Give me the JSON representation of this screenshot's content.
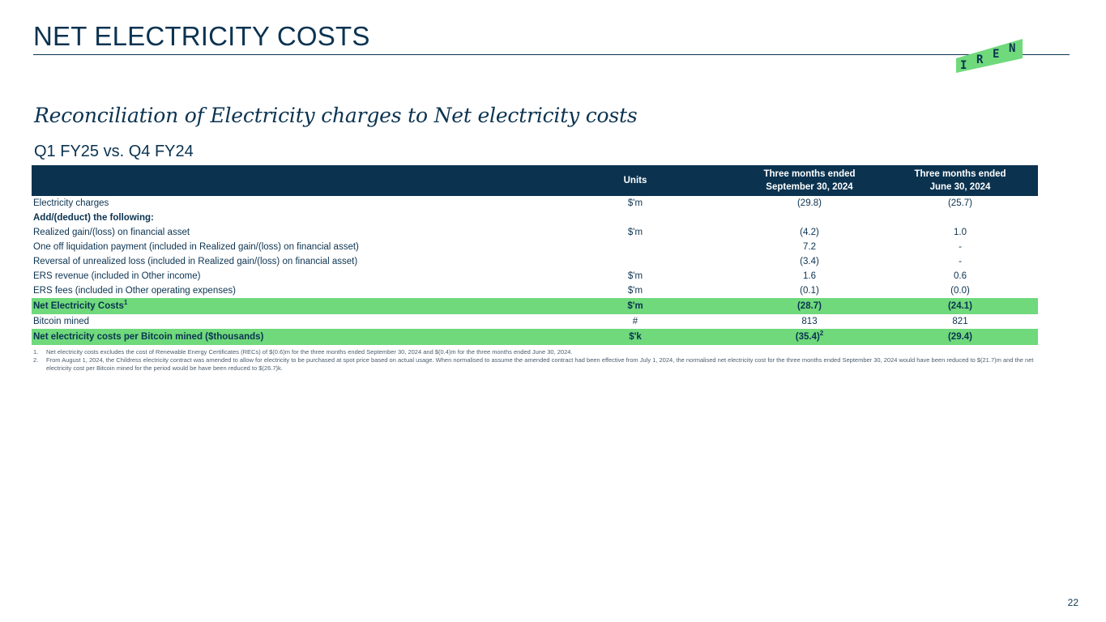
{
  "header": {
    "title": "NET ELECTRICITY COSTS",
    "logo_letters": [
      "I",
      "R",
      "E",
      "N"
    ]
  },
  "subtitle": "Reconciliation of Electricity charges to Net electricity costs",
  "section_label": "Q1 FY25 vs. Q4 FY24",
  "table": {
    "headers": {
      "units": "Units",
      "col_a_line1": "Three months ended",
      "col_a_line2": "September 30, 2024",
      "col_b_line1": "Three months ended",
      "col_b_line2": "June 30, 2024"
    },
    "rows": [
      {
        "label": "Electricity charges",
        "units": "$'m",
        "a": "(29.8)",
        "b": "(25.7)"
      },
      {
        "label": "Add/(deduct) the following:",
        "units": "",
        "a": "",
        "b": ""
      },
      {
        "label": "Realized gain/(loss) on financial asset",
        "units": "$'m",
        "a": "(4.2)",
        "b": "1.0"
      },
      {
        "label": "One off liquidation payment (included in Realized gain/(loss) on financial asset)",
        "units": "",
        "a": "7.2",
        "b": "-"
      },
      {
        "label": "Reversal of unrealized loss (included in Realized gain/(loss) on financial asset)",
        "units": "",
        "a": "(3.4)",
        "b": "-"
      },
      {
        "label": "ERS revenue (included in Other income)",
        "units": "$'m",
        "a": "1.6",
        "b": "0.6"
      },
      {
        "label": "ERS fees (included in Other operating expenses)",
        "units": "$'m",
        "a": "(0.1)",
        "b": "(0.0)"
      },
      {
        "label": "Net Electricity Costs",
        "label_sup": "1",
        "units": "$'m",
        "a": "(28.7)",
        "b": "(24.1)"
      },
      {
        "label": "Bitcoin mined",
        "units": "#",
        "a": "813",
        "b": "821"
      },
      {
        "label": "Net electricity costs per Bitcoin mined ($thousands)",
        "units": "$'k",
        "a": "(35.4)",
        "a_sup": "2",
        "b": "(29.4)"
      }
    ]
  },
  "footnotes": [
    {
      "num": "1.",
      "text": "Net electricity costs excludes the cost of Renewable Energy Certificates (RECs) of $(0.6)m for the three months ended September 30, 2024 and $(0.4)m for the three months ended June 30, 2024."
    },
    {
      "num": "2.",
      "text": "From August 1, 2024, the Childress electricity contract was amended to allow for electricity to be purchased at spot price based on actual usage. When normalised to assume the amended contract had been effective from July 1, 2024, the normalised net electricity cost for the three months ended September 30, 2024 would have been reduced to $(21.7)m and the net electricity cost per Bitcoin mined for the period would be have been reduced to $(26.7)k."
    }
  ],
  "page_number": "22",
  "colors": {
    "navy": "#0b3350",
    "highlight_green": "#6fd97c",
    "logo_green": "#6fd97c"
  }
}
